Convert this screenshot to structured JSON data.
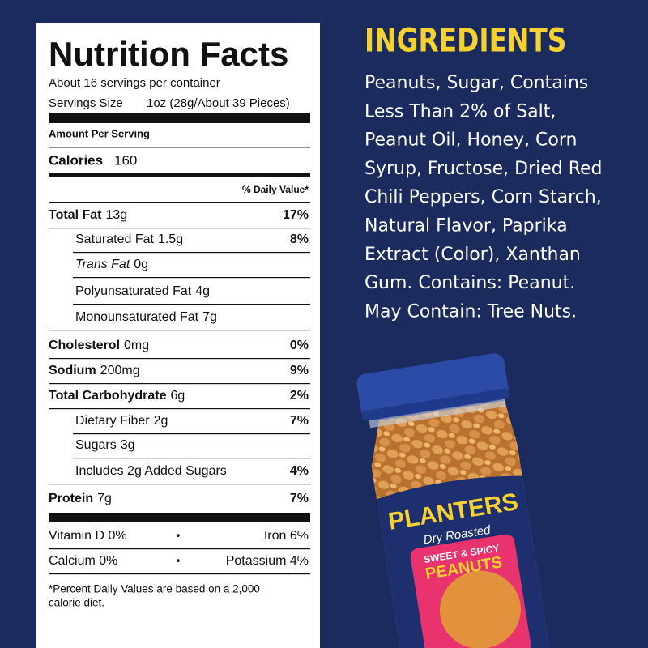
{
  "nutrition": {
    "title": "Nutrition Facts",
    "servings_per_container": "About 16 servings per container",
    "serving_size_label": "Servings Size",
    "serving_size": "1oz (28g/About 39 Pieces)",
    "amount_per_serving": "Amount Per Serving",
    "calories_label": "Calories",
    "calories": "160",
    "daily_value_header": "% Daily Value*",
    "rows": [
      {
        "name": "Total Fat",
        "amount": "13g",
        "dv": "17%",
        "bold": true,
        "indent": false,
        "italic": false
      },
      {
        "name": "Saturated Fat",
        "amount": "1.5g",
        "dv": "8%",
        "bold": false,
        "indent": true,
        "italic": false
      },
      {
        "name": "Trans Fat",
        "amount": "0g",
        "dv": null,
        "bold": false,
        "indent": true,
        "italic": true
      },
      {
        "name": "Polyunsaturated Fat",
        "amount": "4g",
        "dv": null,
        "bold": false,
        "indent": true,
        "italic": false
      },
      {
        "name": "Monounsaturated Fat",
        "amount": "7g",
        "dv": null,
        "bold": false,
        "indent": true,
        "italic": false
      },
      {
        "name": "Cholesterol",
        "amount": "0mg",
        "dv": "0%",
        "bold": true,
        "indent": false,
        "italic": false
      },
      {
        "name": "Sodium",
        "amount": "200mg",
        "dv": "9%",
        "bold": true,
        "indent": false,
        "italic": false
      },
      {
        "name": "Total Carbohydrate",
        "amount": "6g",
        "dv": "2%",
        "bold": true,
        "indent": false,
        "italic": false
      },
      {
        "name": "Dietary Fiber",
        "amount": "2g",
        "dv": "7%",
        "bold": false,
        "indent": true,
        "italic": false
      },
      {
        "name": "Sugars",
        "amount": "3g",
        "dv": null,
        "bold": false,
        "indent": true,
        "italic": false
      },
      {
        "name": "Includes 2g Added Sugars",
        "amount": null,
        "dv": "4%",
        "bold": false,
        "indent": true,
        "italic": false
      },
      {
        "name": "Protein",
        "amount": "7g",
        "dv": "7%",
        "bold": true,
        "indent": false,
        "italic": false
      }
    ],
    "micros": [
      [
        "Vitamin D 0%",
        "Iron 6%"
      ],
      [
        "Calcium 0%",
        "Potassium 4%"
      ]
    ],
    "separator": "•",
    "footnote": [
      "*Percent Daily Values are based on a 2,000",
      "calorie diet."
    ]
  },
  "ingredients": {
    "title": "INGREDIENTS",
    "lines": [
      "Peanuts, Sugar, Contains",
      "Less Than 2% of Salt,",
      "Peanut Oil, Honey, Corn",
      "Syrup, Fructose, Dried Red",
      "Chili Peppers, Corn Starch,",
      "Natural Flavor, Paprika",
      "Extract (Color), Xanthan",
      "Gum. Contains: Peanut.",
      "May Contain: Tree Nuts."
    ]
  },
  "product": {
    "brand": "PLANTERS",
    "variety": "Dry Roasted",
    "flavor": "SWEET & SPICY",
    "name": "PEANUTS"
  }
}
